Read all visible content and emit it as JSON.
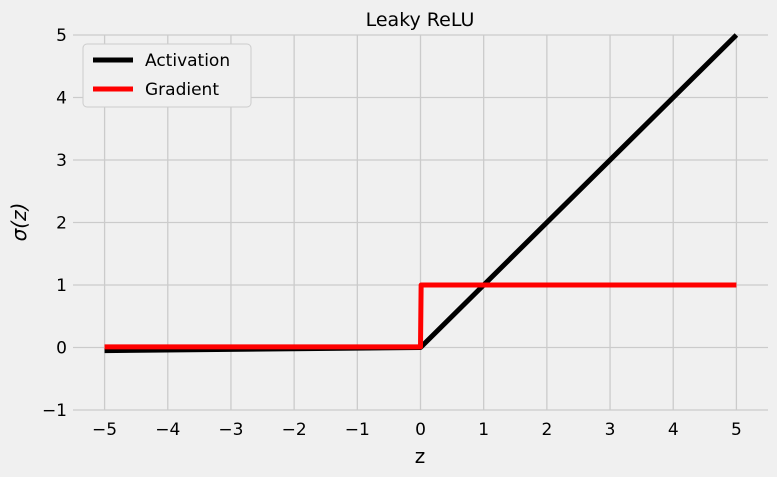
{
  "chart_data": {
    "type": "line",
    "title": "Leaky ReLU",
    "xlabel": "z",
    "ylabel": "σ(z)",
    "xlim": [
      -5.5,
      5.5
    ],
    "ylim": [
      -1,
      5
    ],
    "xticks": [
      -5,
      -4,
      -3,
      -2,
      -1,
      0,
      1,
      2,
      3,
      4,
      5
    ],
    "yticks": [
      -1,
      0,
      1,
      2,
      3,
      4,
      5
    ],
    "xtick_labels": [
      "−5",
      "−4",
      "−3",
      "−2",
      "−1",
      "0",
      "1",
      "2",
      "3",
      "4",
      "5"
    ],
    "ytick_labels": [
      "−1",
      "0",
      "1",
      "2",
      "3",
      "4",
      "5"
    ],
    "grid": true,
    "legend_position": "top-left",
    "series": [
      {
        "name": "Activation",
        "color": "#000000",
        "points": [
          [
            -5,
            -0.05
          ],
          [
            0,
            0
          ],
          [
            5,
            5
          ]
        ]
      },
      {
        "name": "Gradient",
        "color": "#ff0000",
        "points": [
          [
            -5,
            0.01
          ],
          [
            0,
            0.01
          ],
          [
            0.01,
            1
          ],
          [
            5,
            1
          ]
        ]
      }
    ]
  },
  "colors": {
    "background": "#f0f0f0",
    "grid": "#cbcbcb"
  }
}
